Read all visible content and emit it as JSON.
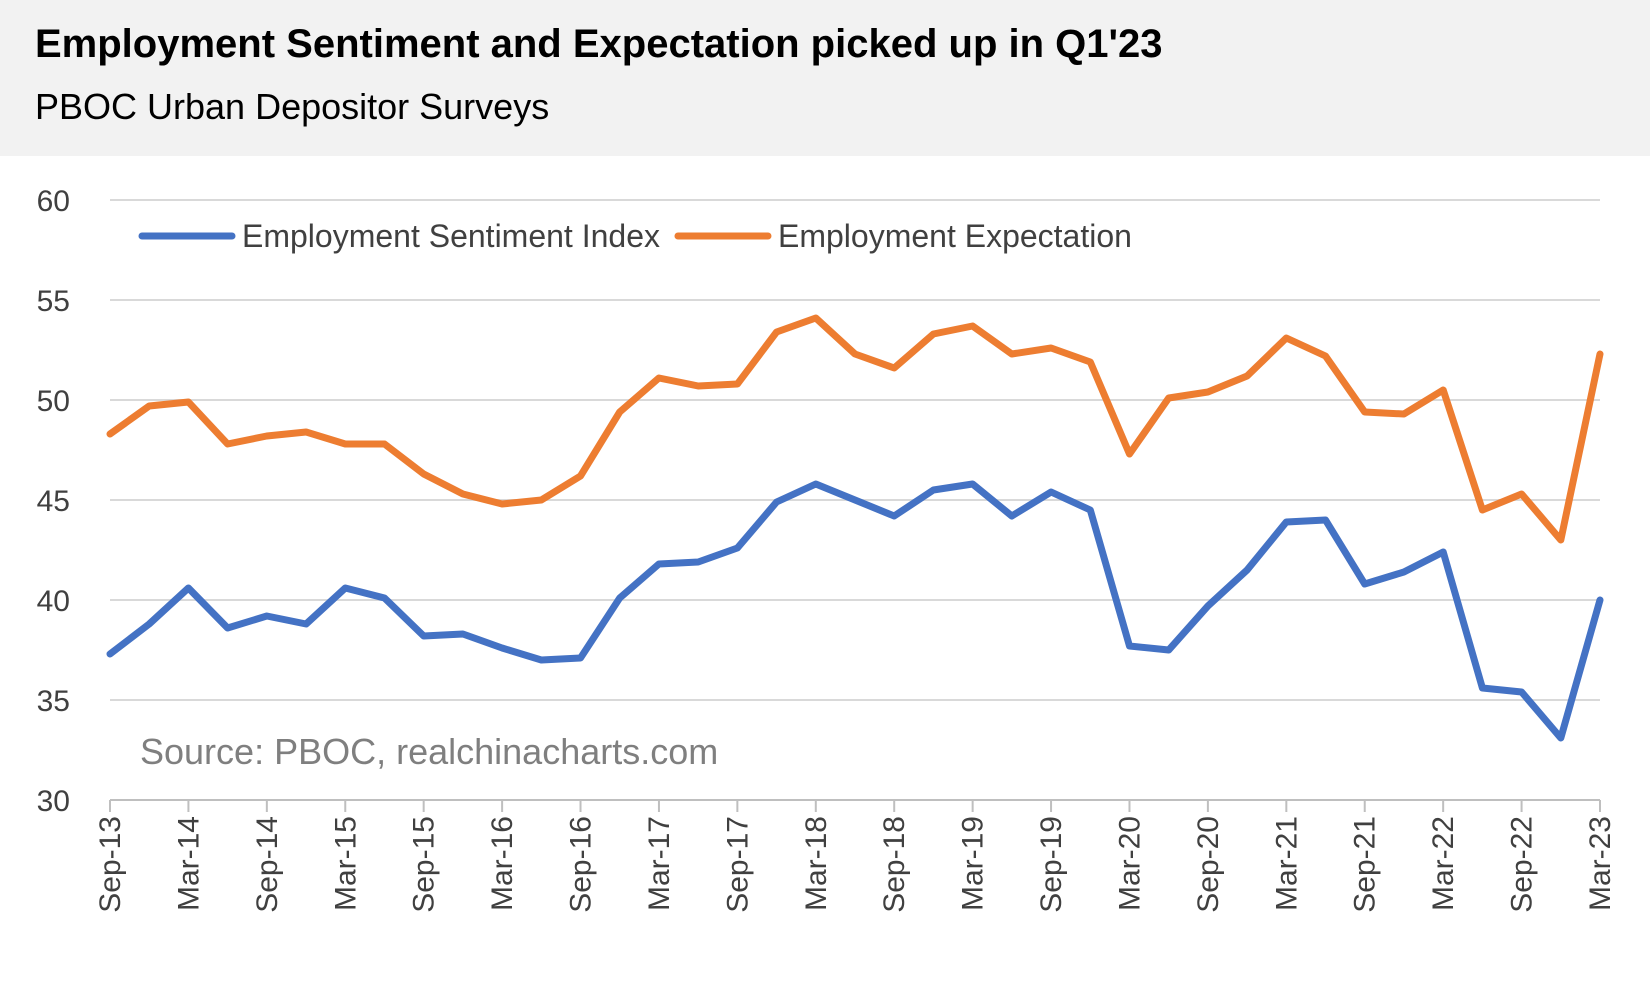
{
  "header": {
    "title": "Employment Sentiment and Expectation picked up in Q1'23",
    "subtitle": "PBOC Urban Depositor Surveys"
  },
  "source": "Source: PBOC, realchinacharts.com",
  "chart_data": {
    "type": "line",
    "title": "Employment Sentiment and Expectation picked up in Q1'23",
    "subtitle": "PBOC Urban Depositor Surveys",
    "xlabel": "",
    "ylabel": "",
    "ylim": [
      30,
      60
    ],
    "yticks": [
      30,
      35,
      40,
      45,
      50,
      55,
      60
    ],
    "grid": true,
    "legend_position": "top-left",
    "x_tick_labels": [
      "Sep-13",
      "Mar-14",
      "Sep-14",
      "Mar-15",
      "Sep-15",
      "Mar-16",
      "Sep-16",
      "Mar-17",
      "Sep-17",
      "Mar-18",
      "Sep-18",
      "Mar-19",
      "Sep-19",
      "Mar-20",
      "Sep-20",
      "Mar-21",
      "Sep-21",
      "Mar-22",
      "Sep-22",
      "Mar-23"
    ],
    "x": [
      "Sep-13",
      "Dec-13",
      "Mar-14",
      "Jun-14",
      "Sep-14",
      "Dec-14",
      "Mar-15",
      "Jun-15",
      "Sep-15",
      "Dec-15",
      "Mar-16",
      "Jun-16",
      "Sep-16",
      "Dec-16",
      "Mar-17",
      "Jun-17",
      "Sep-17",
      "Dec-17",
      "Mar-18",
      "Jun-18",
      "Sep-18",
      "Dec-18",
      "Mar-19",
      "Jun-19",
      "Sep-19",
      "Dec-19",
      "Mar-20",
      "Jun-20",
      "Sep-20",
      "Dec-20",
      "Mar-21",
      "Jun-21",
      "Sep-21",
      "Dec-21",
      "Mar-22",
      "Jun-22",
      "Sep-22",
      "Dec-22",
      "Mar-23"
    ],
    "series": [
      {
        "name": "Employment Sentiment Index",
        "color": "#4472c4",
        "values": [
          37.3,
          38.8,
          40.6,
          38.6,
          39.2,
          38.8,
          40.6,
          40.1,
          38.2,
          38.3,
          37.6,
          37.0,
          37.1,
          40.1,
          41.8,
          41.9,
          42.6,
          44.9,
          45.8,
          45.0,
          44.2,
          45.5,
          45.8,
          44.2,
          45.4,
          44.5,
          37.7,
          37.5,
          39.7,
          41.5,
          43.9,
          44.0,
          40.8,
          41.4,
          42.4,
          35.6,
          35.4,
          33.1,
          40.0
        ]
      },
      {
        "name": "Employment Expectation",
        "color": "#ed7d31",
        "values": [
          48.3,
          49.7,
          49.9,
          47.8,
          48.2,
          48.4,
          47.8,
          47.8,
          46.3,
          45.3,
          44.8,
          45.0,
          46.2,
          49.4,
          51.1,
          50.7,
          50.8,
          53.4,
          54.1,
          52.3,
          51.6,
          53.3,
          53.7,
          52.3,
          52.6,
          51.9,
          47.3,
          50.1,
          50.4,
          51.2,
          53.1,
          52.2,
          49.4,
          49.3,
          50.5,
          44.5,
          45.3,
          43.0,
          52.3
        ]
      }
    ]
  }
}
